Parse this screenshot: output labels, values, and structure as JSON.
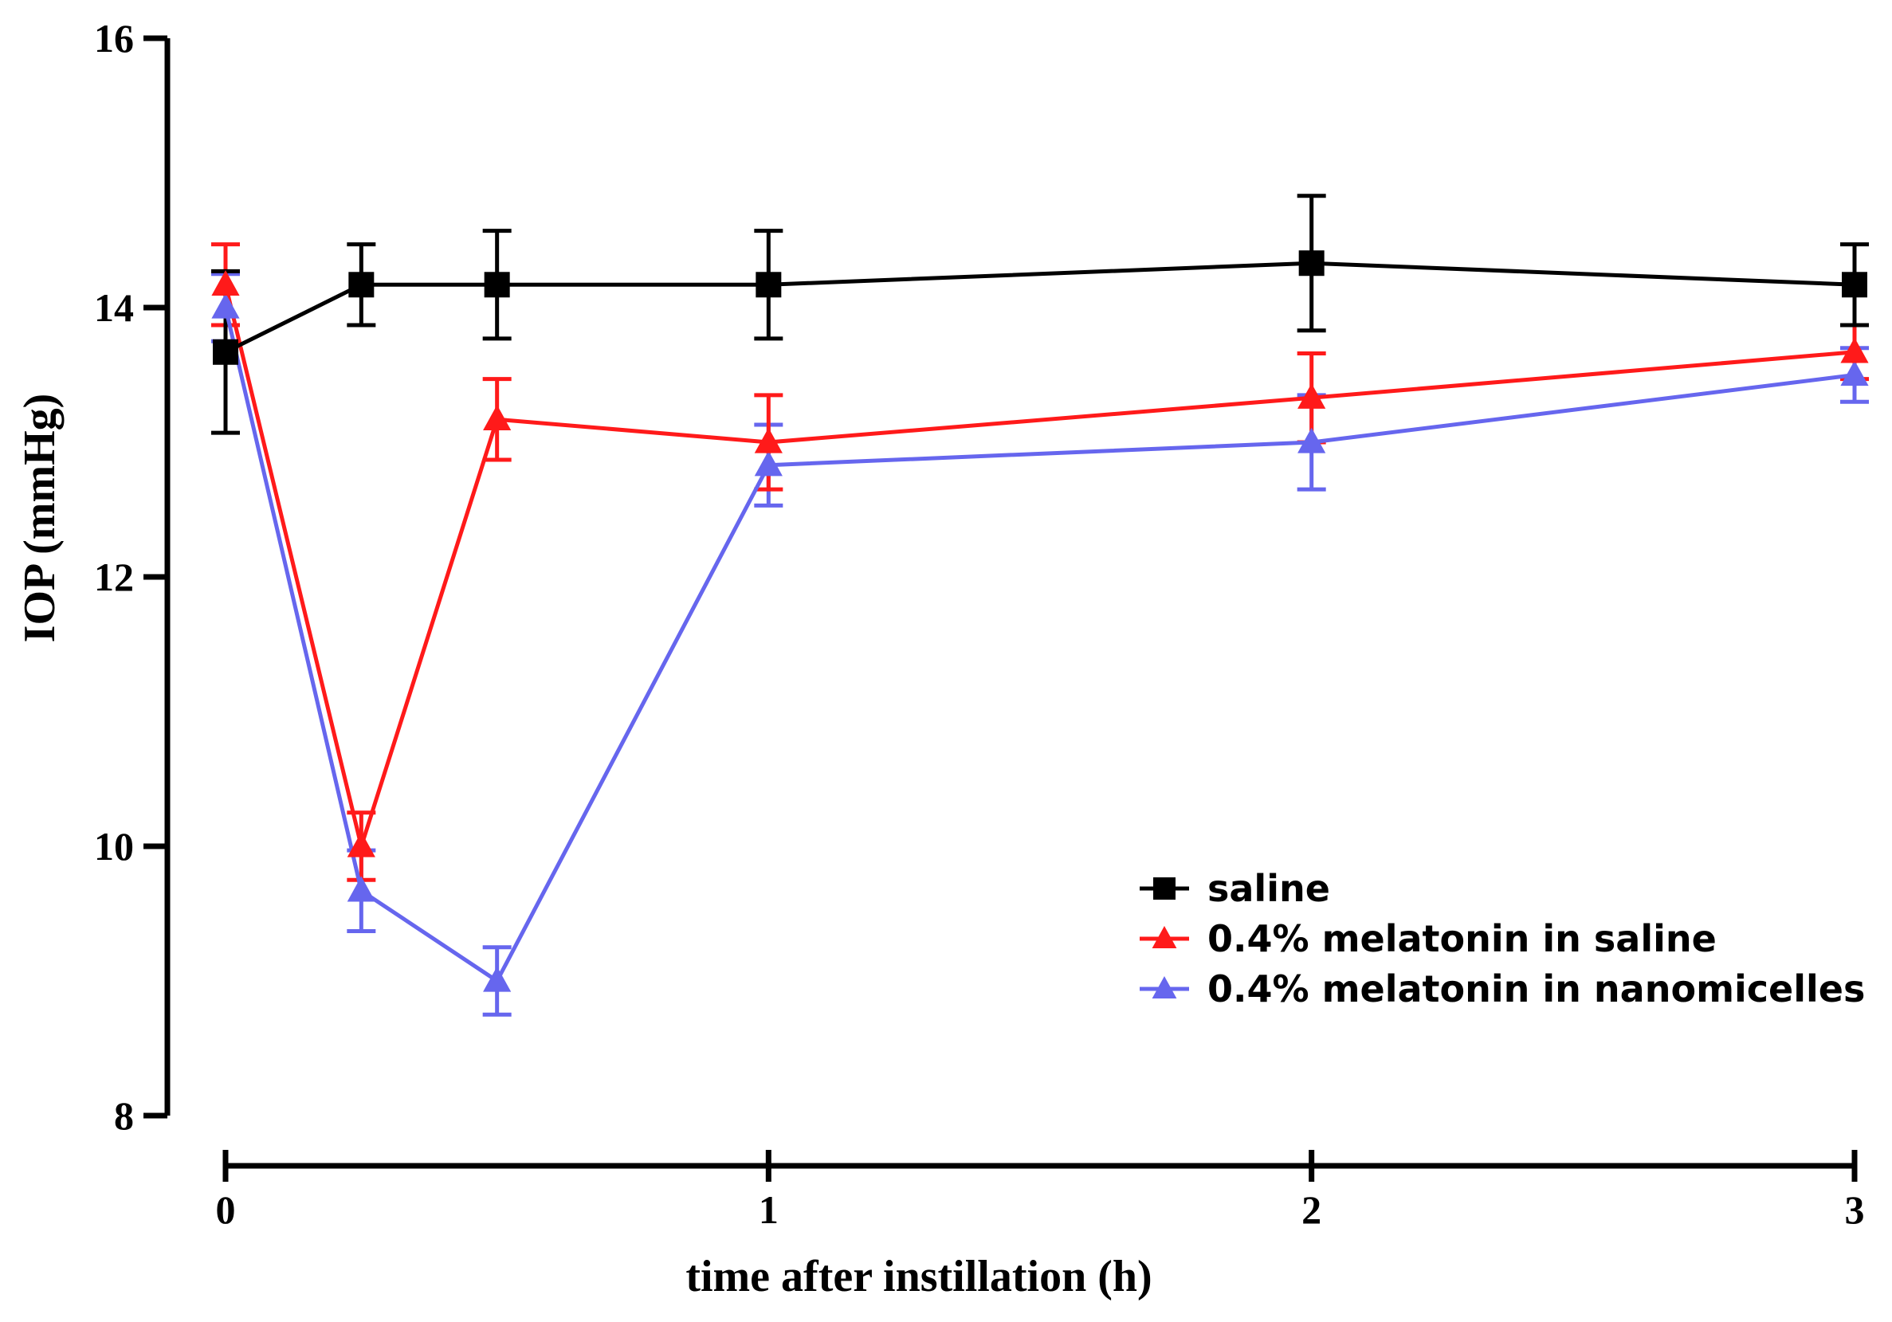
{
  "chart_data": {
    "type": "line",
    "title": "",
    "xlabel": "time after instillation (h)",
    "ylabel": "IOP (mmHg)",
    "xlim": [
      0,
      3
    ],
    "ylim": [
      8,
      16
    ],
    "xticks": [
      0,
      1,
      2,
      3
    ],
    "yticks": [
      8,
      10,
      12,
      14,
      16
    ],
    "legend_position": "bottom-right",
    "grid": false,
    "x": [
      0,
      0.25,
      0.5,
      1,
      2,
      3
    ],
    "series": [
      {
        "name": "saline",
        "color": "#000000",
        "marker": "square",
        "values": [
          13.67,
          14.17,
          14.17,
          14.17,
          14.33,
          14.17
        ],
        "errors": [
          0.6,
          0.3,
          0.4,
          0.4,
          0.5,
          0.3
        ]
      },
      {
        "name": "0.4% melatonin in saline",
        "color": "#ff1a1a",
        "marker": "triangle",
        "values": [
          14.17,
          10.0,
          13.17,
          13.0,
          13.33,
          13.67
        ],
        "errors": [
          0.3,
          0.25,
          0.3,
          0.35,
          0.33,
          0.2
        ]
      },
      {
        "name": "0.4% melatonin in nanomicelles",
        "color": "#6666ee",
        "marker": "triangle",
        "values": [
          14.0,
          9.67,
          9.0,
          12.83,
          13.0,
          13.5
        ],
        "errors": [
          0.25,
          0.3,
          0.25,
          0.3,
          0.35,
          0.2
        ]
      }
    ]
  }
}
